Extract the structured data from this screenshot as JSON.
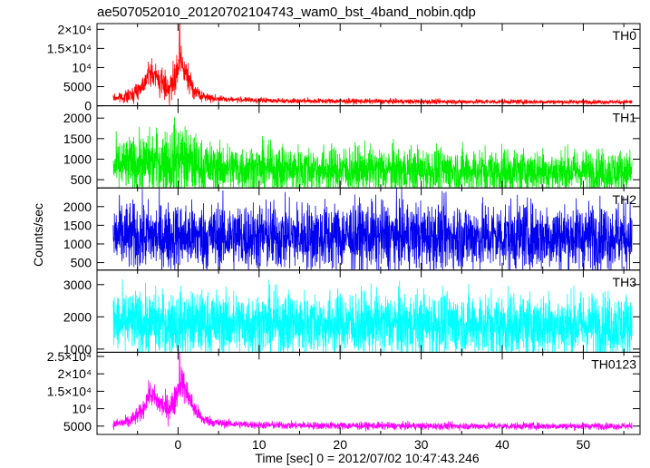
{
  "chart_data": {
    "type": "line",
    "title": "ae507052010_20120702104743_wam0_bst_4band_nobin.qdp",
    "xlabel": "Time [sec] 0 = 2012/07/02 10:47:43.246",
    "ylabel": "Counts/sec",
    "xlim": [
      -10,
      57
    ],
    "x_ticks": [
      0,
      10,
      20,
      30,
      40,
      50
    ],
    "x_tick_labels": [
      "0",
      "10",
      "20",
      "30",
      "40",
      "50"
    ],
    "data_range": [
      -8,
      56
    ],
    "panels": [
      {
        "name": "TH0",
        "color": "#ff0000",
        "ylim": [
          0,
          21500
        ],
        "y_ticks": [
          0,
          5000,
          10000,
          15000,
          20000
        ],
        "y_tick_labels": [
          "0",
          "5000",
          "10⁴",
          "1.5×10⁴",
          "2×10⁴"
        ],
        "baseline": [
          [
            -8,
            2000
          ],
          [
            -6,
            2500
          ],
          [
            -4.5,
            5000
          ],
          [
            -3.5,
            9000
          ],
          [
            -2.5,
            7000
          ],
          [
            -1.5,
            5000
          ],
          [
            -0.5,
            5500
          ],
          [
            0.3,
            12000
          ],
          [
            1,
            8000
          ],
          [
            2,
            4000
          ],
          [
            3,
            2400
          ],
          [
            5,
            1800
          ],
          [
            10,
            1400
          ],
          [
            20,
            1200
          ],
          [
            30,
            1100
          ],
          [
            40,
            1050
          ],
          [
            50,
            1000
          ],
          [
            56,
            1000
          ]
        ],
        "noise": [
          [
            -8,
            700
          ],
          [
            -4,
            1800
          ],
          [
            -3.5,
            2200
          ],
          [
            0,
            3500
          ],
          [
            0.5,
            3500
          ],
          [
            1.5,
            2000
          ],
          [
            3,
            900
          ],
          [
            6,
            500
          ],
          [
            56,
            400
          ]
        ],
        "peak": {
          "x": 0.2,
          "y": 21500
        }
      },
      {
        "name": "TH1",
        "color": "#00ee00",
        "ylim": [
          300,
          2300
        ],
        "y_ticks": [
          500,
          1000,
          1500,
          2000
        ],
        "y_tick_labels": [
          "500",
          "1000",
          "1500",
          "2000"
        ],
        "baseline": [
          [
            -8,
            800
          ],
          [
            -4,
            900
          ],
          [
            -1,
            950
          ],
          [
            0.2,
            1050
          ],
          [
            1.5,
            900
          ],
          [
            3,
            800
          ],
          [
            10,
            760
          ],
          [
            30,
            720
          ],
          [
            56,
            700
          ]
        ],
        "noise": [
          [
            -8,
            450
          ],
          [
            -3,
            550
          ],
          [
            0,
            650
          ],
          [
            1.5,
            550
          ],
          [
            4,
            430
          ],
          [
            56,
            380
          ]
        ]
      },
      {
        "name": "TH2",
        "color": "#0000ee",
        "ylim": [
          300,
          2500
        ],
        "y_ticks": [
          500,
          1000,
          1500,
          2000
        ],
        "y_tick_labels": [
          "500",
          "1000",
          "1500",
          "2000"
        ],
        "baseline": [
          [
            -8,
            1200
          ],
          [
            56,
            1200
          ]
        ],
        "noise": [
          [
            -8,
            650
          ],
          [
            56,
            650
          ]
        ]
      },
      {
        "name": "TH3",
        "color": "#00ffff",
        "ylim": [
          900,
          3450
        ],
        "y_ticks": [
          1000,
          2000,
          3000
        ],
        "y_tick_labels": [
          "1000",
          "2000",
          "3000"
        ],
        "baseline": [
          [
            -8,
            1800
          ],
          [
            56,
            1750
          ]
        ],
        "noise": [
          [
            -8,
            720
          ],
          [
            56,
            720
          ]
        ]
      },
      {
        "name": "TH0123",
        "color": "#ff00ff",
        "ylim": [
          2600,
          26200
        ],
        "y_ticks": [
          5000,
          10000,
          15000,
          20000,
          25000
        ],
        "y_tick_labels": [
          "5000",
          "10⁴",
          "1.5×10⁴",
          "2×10⁴",
          "2.5×10⁴"
        ],
        "baseline": [
          [
            -8,
            5500
          ],
          [
            -6,
            6200
          ],
          [
            -4.5,
            9000
          ],
          [
            -3.5,
            14500
          ],
          [
            -2.5,
            12000
          ],
          [
            -1.5,
            10000
          ],
          [
            -0.5,
            11500
          ],
          [
            0.3,
            18500
          ],
          [
            1,
            15000
          ],
          [
            2,
            10000
          ],
          [
            3,
            7000
          ],
          [
            5,
            5800
          ],
          [
            10,
            5300
          ],
          [
            20,
            5100
          ],
          [
            30,
            5000
          ],
          [
            40,
            5000
          ],
          [
            56,
            5000
          ]
        ],
        "noise": [
          [
            -8,
            900
          ],
          [
            -4,
            2000
          ],
          [
            -3.5,
            2400
          ],
          [
            0,
            3200
          ],
          [
            0.5,
            3500
          ],
          [
            1.5,
            2400
          ],
          [
            3,
            1200
          ],
          [
            6,
            800
          ],
          [
            56,
            700
          ]
        ],
        "peak": {
          "x": 0.2,
          "y": 26000
        }
      }
    ]
  }
}
